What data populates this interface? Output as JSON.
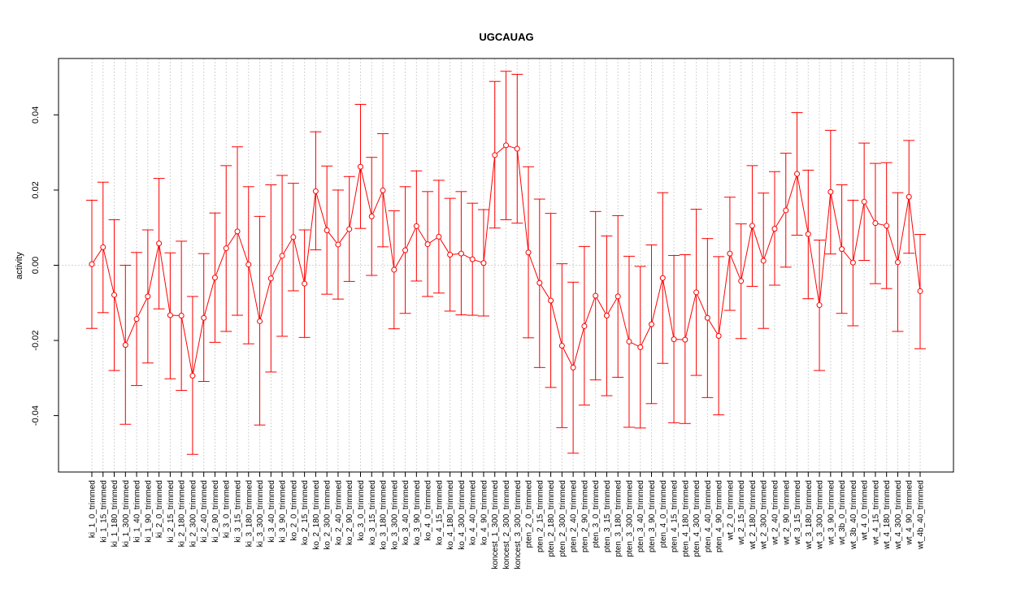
{
  "chart_data": {
    "type": "line",
    "title": "UGCAUAG",
    "ylabel": "activity",
    "xlabel": "",
    "ylim": [
      -0.055,
      0.055
    ],
    "yticks": [
      -0.04,
      -0.02,
      0.0,
      0.02,
      0.04
    ],
    "ytick_labels": [
      "-0.04",
      "-0.02",
      "0.00",
      "0.02",
      "0.04"
    ],
    "grid": true,
    "error_bars": true,
    "colors": {
      "series": "#ff0000",
      "grid": "#d3d3d3",
      "axis": "#000000"
    },
    "categories": [
      "ki_1_0_trimmed",
      "ki_1_15_trimmed",
      "ki_1_180_trimmed",
      "ki_1_300_trimmed",
      "ki_1_40_trimmed",
      "ki_1_90_trimmed",
      "ki_2_0_trimmed",
      "ki_2_15_trimmed",
      "ki_2_180_trimmed",
      "ki_2_300_trimmed",
      "ki_2_40_trimmed",
      "ki_2_90_trimmed",
      "ki_3_0_trimmed",
      "ki_3_15_trimmed",
      "ki_3_180_trimmed",
      "ki_3_300_trimmed",
      "ki_3_40_trimmed",
      "ki_3_90_trimmed",
      "ko_2_0_trimmed",
      "ko_2_15_trimmed",
      "ko_2_180_trimmed",
      "ko_2_300_trimmed",
      "ko_2_40_trimmed",
      "ko_2_90_trimmed",
      "ko_3_0_trimmed",
      "ko_3_15_trimmed",
      "ko_3_180_trimmed",
      "ko_3_300_trimmed",
      "ko_3_40_trimmed",
      "ko_3_90_trimmed",
      "ko_4_0_trimmed",
      "ko_4_15_trimmed",
      "ko_4_180_trimmed",
      "ko_4_300_trimmed",
      "ko_4_40_trimmed",
      "ko_4_90_trimmed",
      "koncest_1_300_trimmed",
      "koncest_2_300_trimmed",
      "koncest_3_300_trimmed",
      "pten_2_0_trimmed",
      "pten_2_15_trimmed",
      "pten_2_180_trimmed",
      "pten_2_300_trimmed",
      "pten_2_40_trimmed",
      "pten_2_90_trimmed",
      "pten_3_0_trimmed",
      "pten_3_15_trimmed",
      "pten_3_180_trimmed",
      "pten_3_300_trimmed",
      "pten_3_40_trimmed",
      "pten_3_90_trimmed",
      "pten_4_0_trimmed",
      "pten_4_15_trimmed",
      "pten_4_180_trimmed",
      "pten_4_300_trimmed",
      "pten_4_40_trimmed",
      "pten_4_90_trimmed",
      "wt_2_0_trimmed",
      "wt_2_15_trimmed",
      "wt_2_180_trimmed",
      "wt_2_300_trimmed",
      "wt_2_40_trimmed",
      "wt_2_90_trimmed",
      "wt_3_15_trimmed",
      "wt_3_180_trimmed",
      "wt_3_300_trimmed",
      "wt_3_90_trimmed",
      "wt_3b_0_trimmed",
      "wt_3b_40_trimmed",
      "wt_4_0_trimmed",
      "wt_4_15_trimmed",
      "wt_4_180_trimmed",
      "wt_4_300_trimmed",
      "wt_4_90_trimmed",
      "wt_4b_40_trimmed"
    ],
    "series": [
      {
        "values": [
          0.0003,
          0.0048,
          -0.0079,
          -0.0212,
          -0.0143,
          -0.0083,
          0.0058,
          -0.0133,
          -0.0134,
          -0.0294,
          -0.014,
          -0.0033,
          0.0045,
          0.009,
          0.0002,
          -0.0149,
          -0.0035,
          0.0025,
          0.0075,
          -0.0049,
          0.0197,
          0.0093,
          0.0055,
          0.0096,
          0.0262,
          0.013,
          0.0199,
          -0.0012,
          0.004,
          0.0104,
          0.0056,
          0.0076,
          0.0028,
          0.0031,
          0.0016,
          0.0006,
          0.0293,
          0.0319,
          0.031,
          0.0034,
          -0.0047,
          -0.0094,
          -0.0214,
          -0.0272,
          -0.0162,
          -0.0081,
          -0.0134,
          -0.0083,
          -0.0203,
          -0.0218,
          -0.0157,
          -0.0034,
          -0.0197,
          -0.0198,
          -0.0072,
          -0.014,
          -0.0188,
          0.0031,
          -0.0042,
          0.0105,
          0.0012,
          0.0097,
          0.0146,
          0.0243,
          0.0083,
          -0.0106,
          0.0195,
          0.0043,
          0.0007,
          0.0169,
          0.0112,
          0.0105,
          0.0008,
          0.0182,
          -0.0069
        ],
        "lower": [
          -0.0168,
          -0.0126,
          -0.028,
          -0.0423,
          -0.032,
          -0.026,
          -0.0116,
          -0.0302,
          -0.0333,
          -0.0503,
          -0.0309,
          -0.0205,
          -0.0176,
          -0.0133,
          -0.0209,
          -0.0425,
          -0.0284,
          -0.0189,
          -0.0068,
          -0.0192,
          0.0041,
          -0.0077,
          -0.009,
          -0.0043,
          0.0098,
          -0.0027,
          0.0049,
          -0.0169,
          -0.0128,
          -0.0042,
          -0.0083,
          -0.0074,
          -0.0122,
          -0.0132,
          -0.0133,
          -0.0135,
          0.0099,
          0.0121,
          0.0112,
          -0.0193,
          -0.0272,
          -0.0325,
          -0.0432,
          -0.05,
          -0.0372,
          -0.0305,
          -0.0347,
          -0.0298,
          -0.0431,
          -0.0433,
          -0.0368,
          -0.0261,
          -0.0419,
          -0.0421,
          -0.0293,
          -0.0352,
          -0.0398,
          -0.012,
          -0.0195,
          -0.0056,
          -0.0168,
          -0.0053,
          -0.0005,
          0.008,
          -0.0089,
          -0.028,
          0.003,
          -0.0128,
          -0.0161,
          0.0013,
          -0.0049,
          -0.0062,
          -0.0176,
          0.0032,
          -0.0222
        ],
        "upper": [
          0.0173,
          0.0221,
          0.0121,
          0.0,
          0.0034,
          0.0094,
          0.0231,
          0.0033,
          0.0064,
          -0.0083,
          0.0031,
          0.0139,
          0.0265,
          0.0315,
          0.0209,
          0.013,
          0.0214,
          0.0239,
          0.0218,
          0.0094,
          0.0355,
          0.0264,
          0.02,
          0.0236,
          0.0428,
          0.0287,
          0.035,
          0.0145,
          0.0209,
          0.0251,
          0.0196,
          0.0226,
          0.0178,
          0.0196,
          0.0165,
          0.0148,
          0.0489,
          0.0516,
          0.0508,
          0.0262,
          0.0176,
          0.0138,
          0.0004,
          -0.0045,
          0.005,
          0.0143,
          0.0078,
          0.0132,
          0.0024,
          -0.0003,
          0.0054,
          0.0193,
          0.0026,
          0.0028,
          0.0149,
          0.0071,
          0.0023,
          0.0181,
          0.011,
          0.0265,
          0.0192,
          0.0249,
          0.0298,
          0.0406,
          0.0253,
          0.0067,
          0.0359,
          0.0214,
          0.0173,
          0.0325,
          0.0271,
          0.0273,
          0.0193,
          0.0332,
          0.0082
        ]
      }
    ]
  }
}
